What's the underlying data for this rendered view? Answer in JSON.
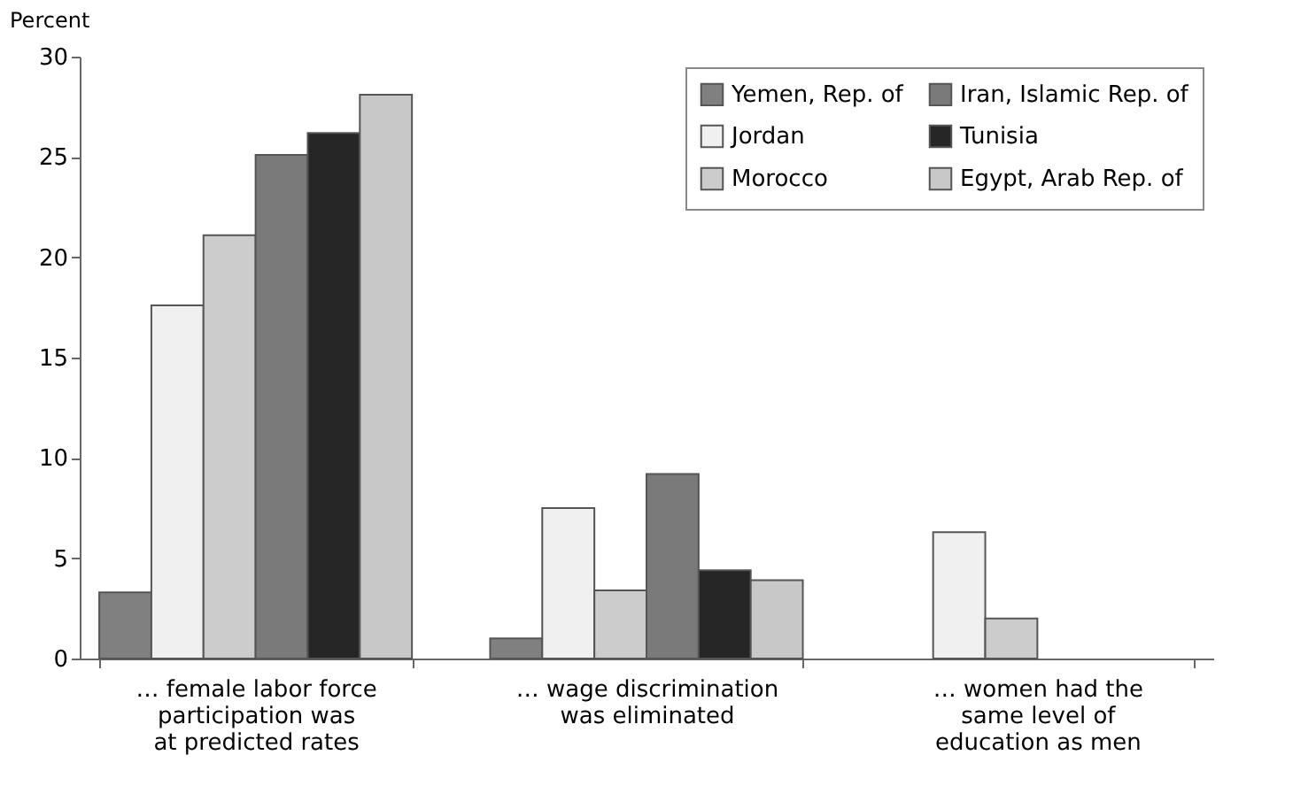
{
  "chart_data": {
    "type": "bar",
    "ylabel": "Percent",
    "categories": [
      "… female labor force\nparticipation was\nat predicted rates",
      "… wage discrimination\nwas eliminated",
      "… women had the\nsame level of\neducation as men"
    ],
    "series": [
      {
        "name": "Yemen, Rep. of",
        "color": "#808080",
        "values": [
          3.3,
          1.0,
          null
        ]
      },
      {
        "name": "Jordan",
        "color": "#f0f0f0",
        "values": [
          17.6,
          7.5,
          6.3
        ]
      },
      {
        "name": "Morocco",
        "color": "#cccccc",
        "values": [
          21.1,
          3.4,
          2.0
        ]
      },
      {
        "name": "Iran, Islamic Rep. of",
        "color": "#7a7a7a",
        "values": [
          25.1,
          9.2,
          null
        ]
      },
      {
        "name": "Tunisia",
        "color": "#262626",
        "values": [
          26.2,
          4.4,
          null
        ]
      },
      {
        "name": "Egypt, Arab Rep. of",
        "color": "#c8c8c8",
        "values": [
          28.1,
          3.9,
          null
        ]
      }
    ],
    "ylim": [
      0,
      30
    ],
    "yticks": [
      0,
      5,
      10,
      15,
      20,
      25,
      30
    ],
    "grid": false,
    "legend": "top right"
  }
}
